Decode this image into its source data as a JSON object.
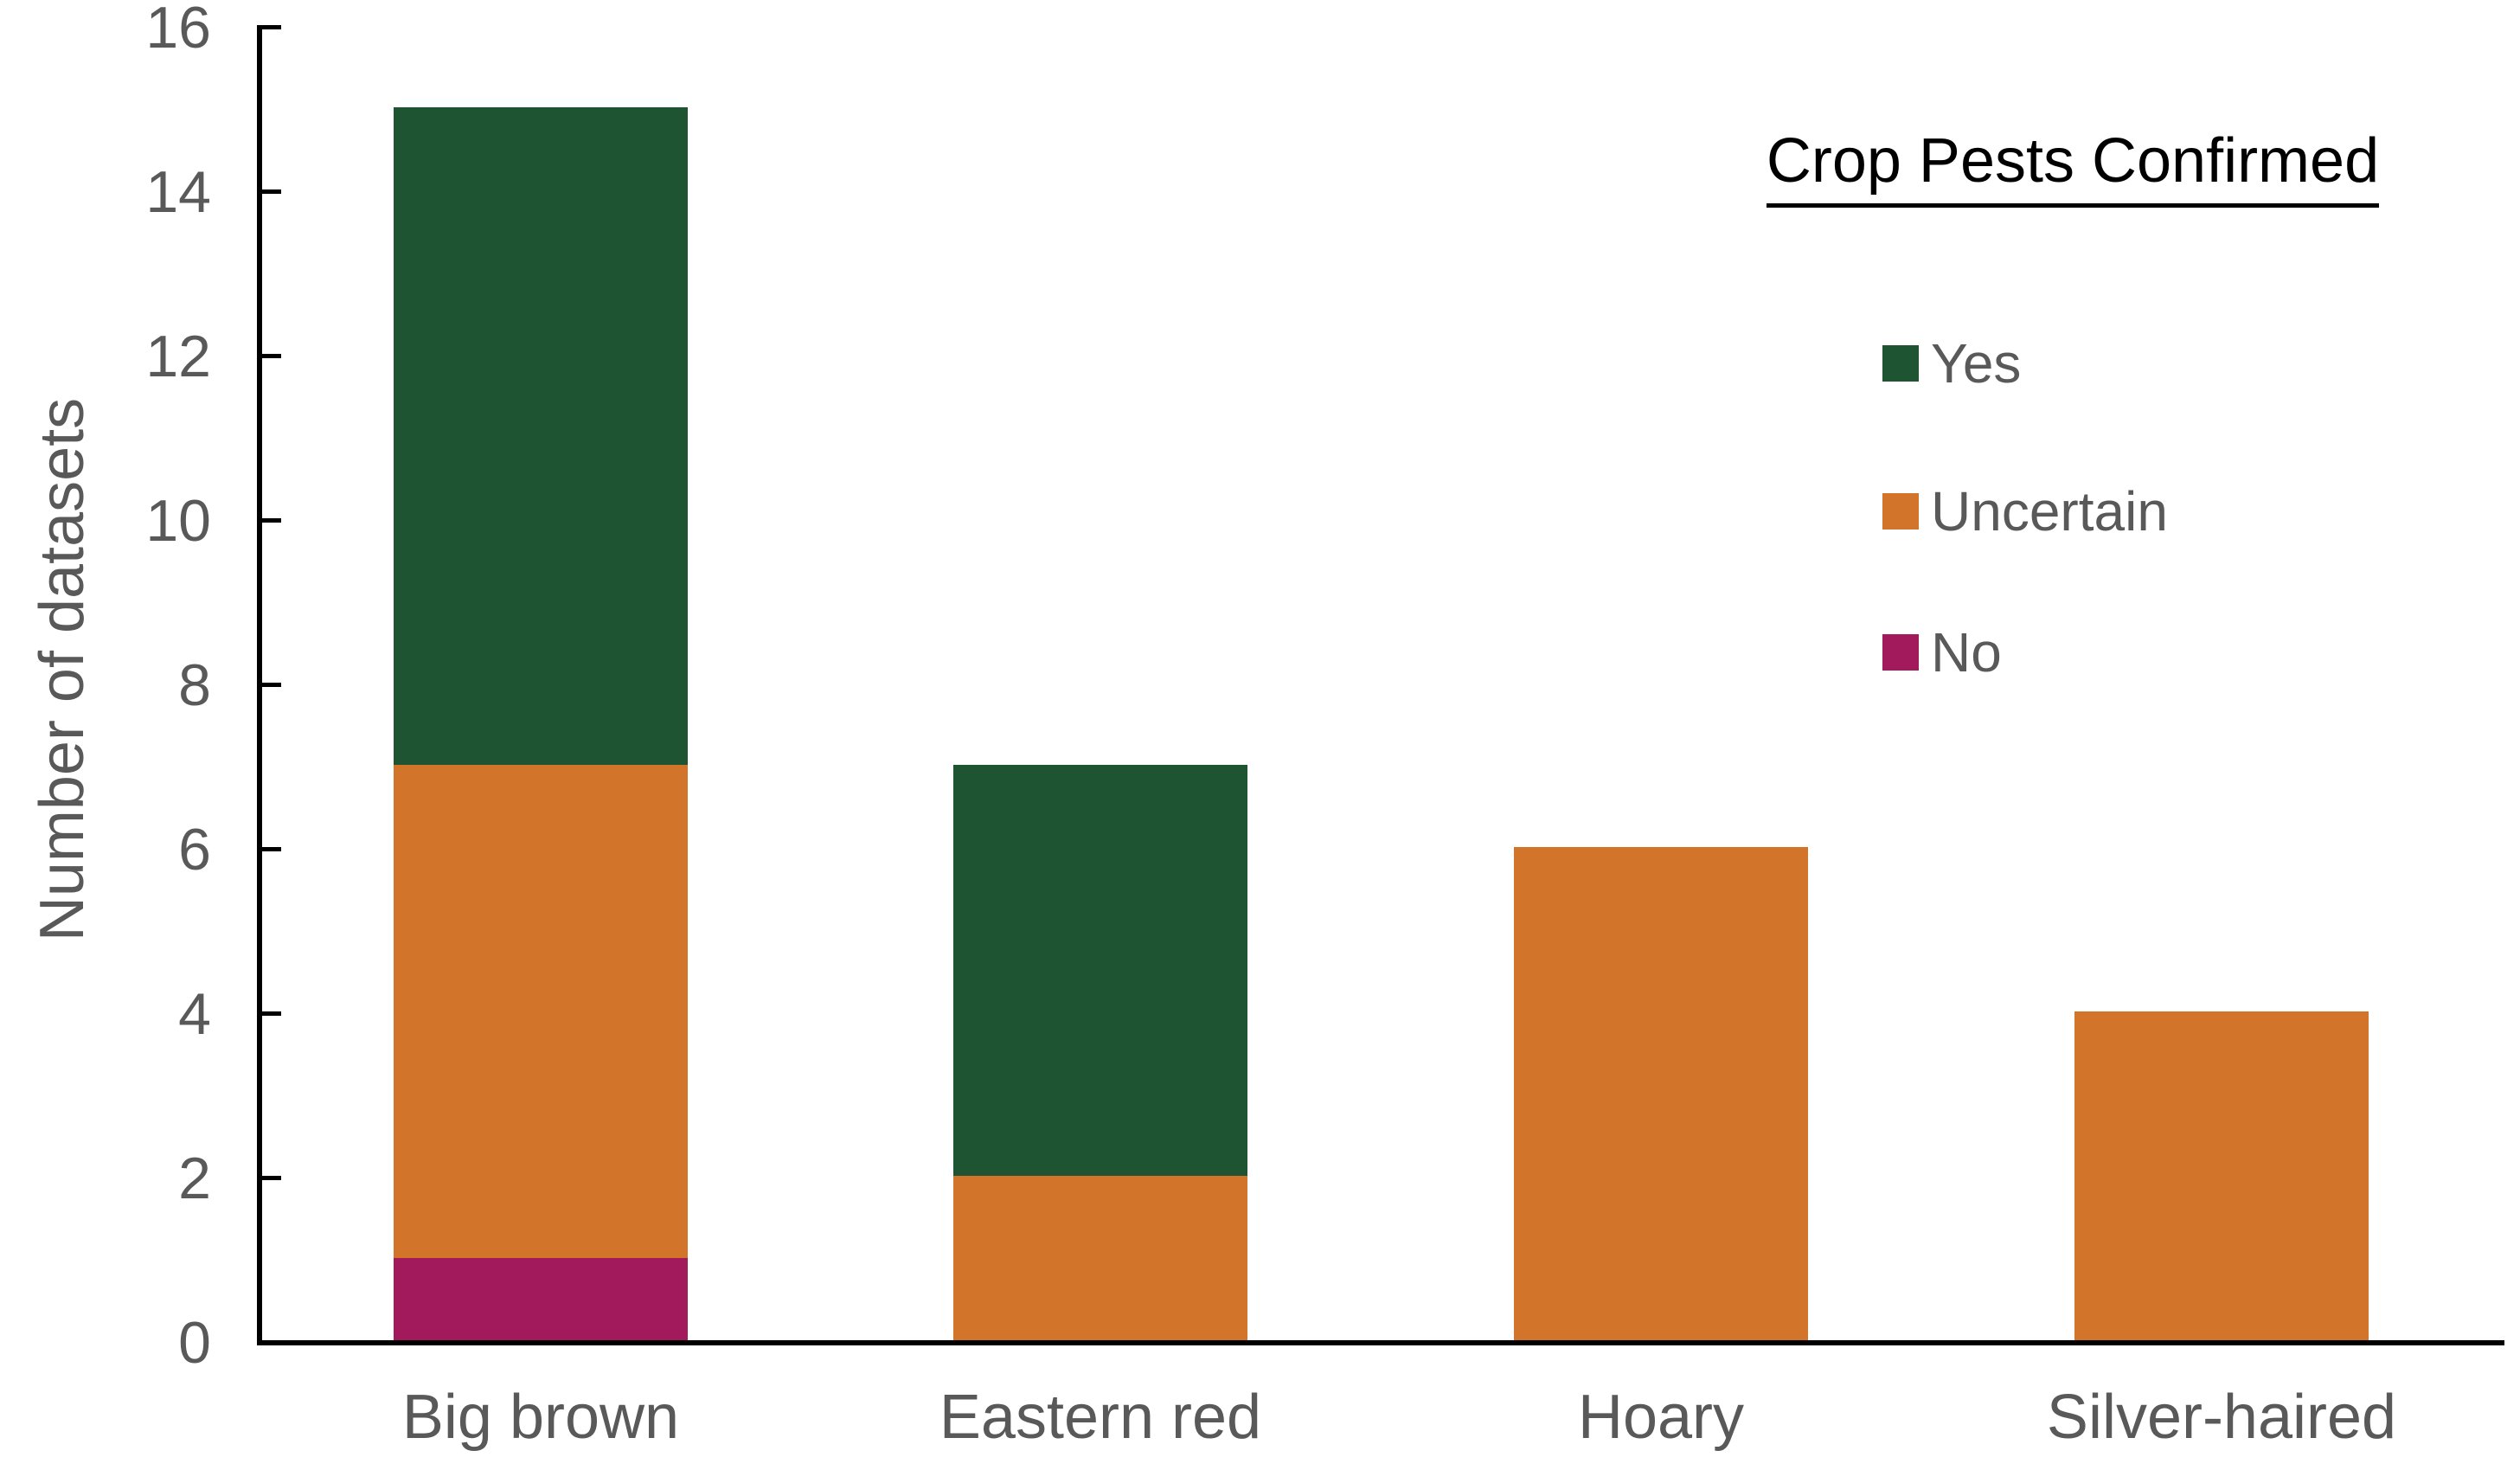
{
  "chart_data": {
    "type": "bar",
    "stacked": true,
    "categories": [
      "Big brown",
      "Eastern red",
      "Hoary",
      "Silver-haired"
    ],
    "series": [
      {
        "name": "Yes",
        "color": "#1F5433",
        "values": [
          8,
          5,
          0,
          0
        ]
      },
      {
        "name": "Uncertain",
        "color": "#D2752B",
        "values": [
          6,
          2,
          6,
          4
        ]
      },
      {
        "name": "No",
        "color": "#A21A5B",
        "values": [
          1,
          0,
          0,
          0
        ]
      }
    ],
    "xlabel": "",
    "ylabel": "Number of datasets",
    "ylim": [
      0,
      16
    ],
    "yticks": [
      0,
      2,
      4,
      6,
      8,
      10,
      12,
      14,
      16
    ],
    "legend_title": "Crop Pests Confirmed",
    "legend_position": "top-right",
    "grid": false,
    "colors": {
      "axis": "#000000",
      "tick_text": "#595959",
      "background": "#FFFFFF"
    }
  }
}
